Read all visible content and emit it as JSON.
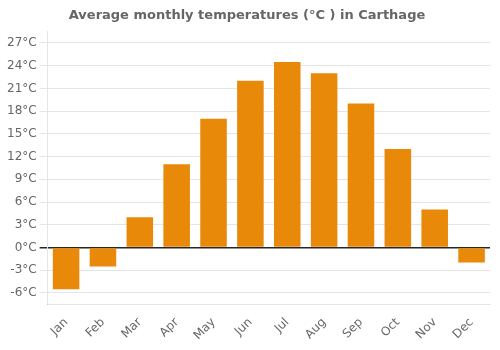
{
  "chart_data": {
    "type": "bar",
    "title": "Average monthly temperatures (°C ) in Carthage",
    "categories": [
      "Jan",
      "Feb",
      "Mar",
      "Apr",
      "May",
      "Jun",
      "Jul",
      "Aug",
      "Sep",
      "Oct",
      "Nov",
      "Dec"
    ],
    "values": [
      -5.5,
      -2.5,
      4.0,
      11.0,
      17.0,
      22.0,
      24.5,
      23.0,
      19.0,
      13.0,
      5.0,
      -2.0
    ],
    "color": "#E8890A",
    "ylim": [
      -7.5,
      28.5
    ],
    "yticks": [
      {
        "value": -6,
        "label": "-6°C"
      },
      {
        "value": -3,
        "label": "-3°C"
      },
      {
        "value": 0,
        "label": "0°C"
      },
      {
        "value": 3,
        "label": "3°C"
      },
      {
        "value": 6,
        "label": "6°C"
      },
      {
        "value": 9,
        "label": "9°C"
      },
      {
        "value": 12,
        "label": "12°C"
      },
      {
        "value": 15,
        "label": "15°C"
      },
      {
        "value": 18,
        "label": "18°C"
      },
      {
        "value": 21,
        "label": "21°C"
      },
      {
        "value": 24,
        "label": "24°C"
      },
      {
        "value": 27,
        "label": "27°C"
      }
    ],
    "grid": true
  }
}
